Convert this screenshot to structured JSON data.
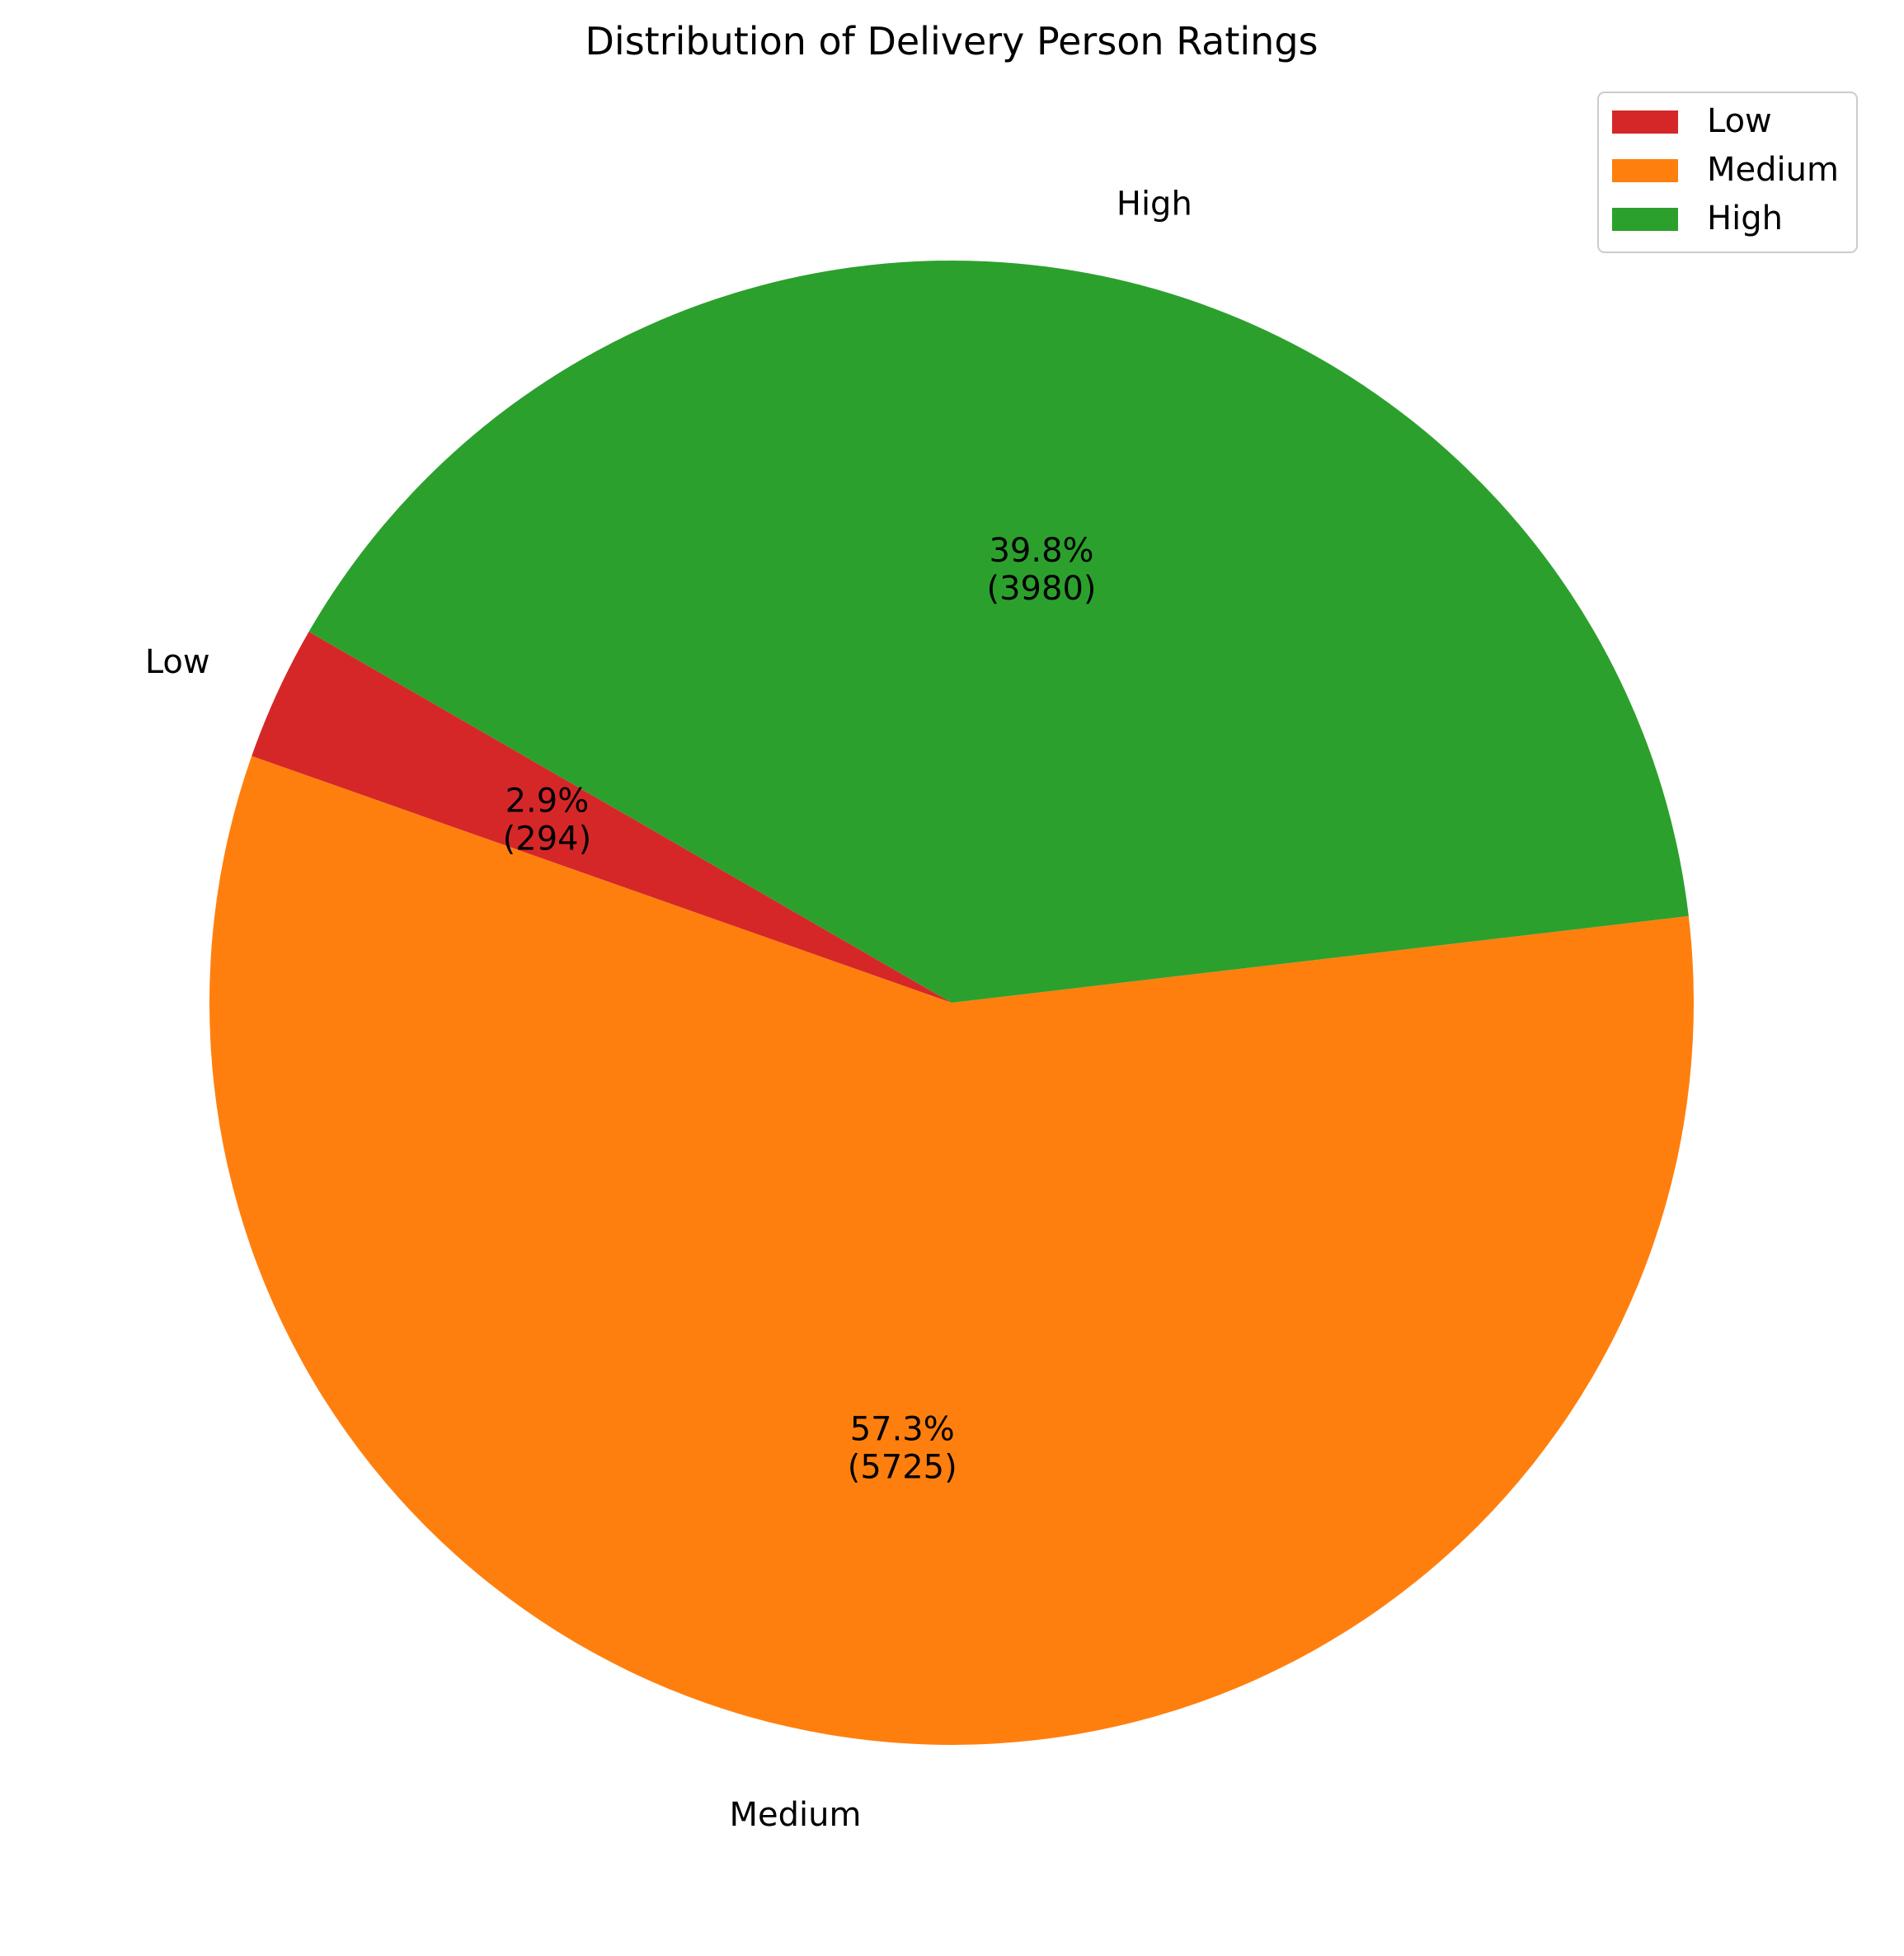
{
  "chart_data": {
    "type": "pie",
    "title": "Distribution of Delivery Person Ratings",
    "categories": [
      "Low",
      "Medium",
      "High"
    ],
    "values": [
      294,
      5725,
      3980
    ],
    "percent_labels": [
      "2.9%",
      "57.3%",
      "39.8%"
    ],
    "count_labels": [
      "(294)",
      "(5725)",
      "(3980)"
    ],
    "colors": [
      "#d62728",
      "#ff7f0e",
      "#2ca02c"
    ],
    "start_angle_deg": 150,
    "direction": "counterclockwise",
    "legend": {
      "position": "top-right",
      "entries": [
        "Low",
        "Medium",
        "High"
      ]
    }
  }
}
